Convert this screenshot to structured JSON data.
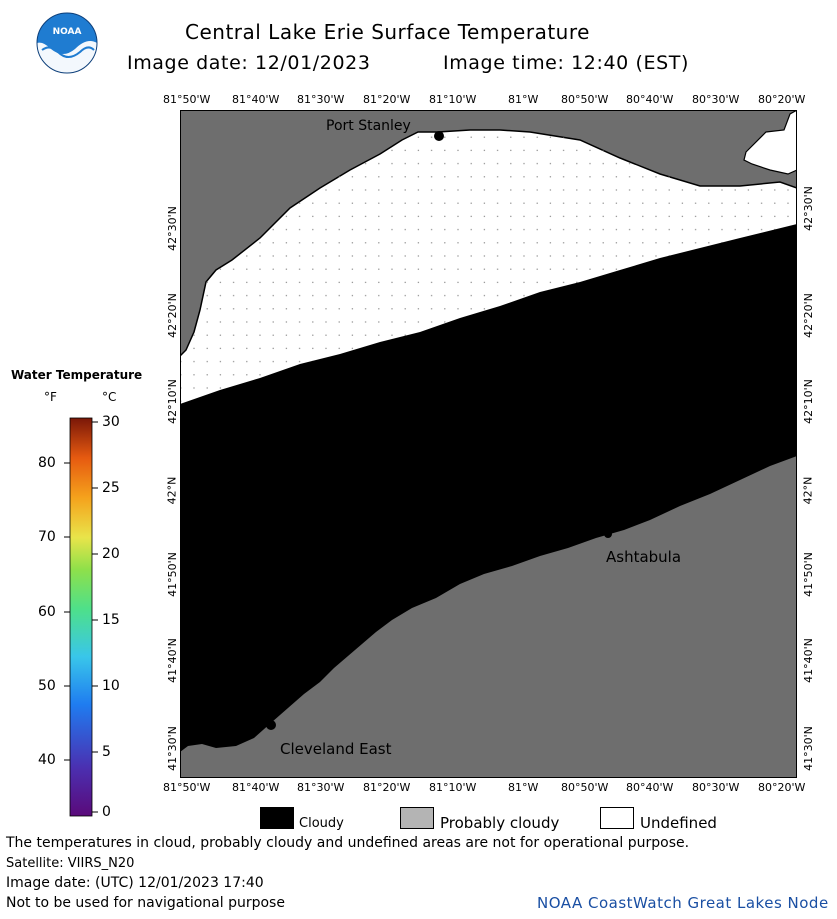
{
  "header": {
    "logo_text": "NOAA",
    "title": "Central Lake Erie Surface Temperature",
    "image_date": "Image date: 12/01/2023",
    "image_time": "Image time: 12:40 (EST)"
  },
  "map": {
    "lon_labels": [
      "81°50'W",
      "81°40'W",
      "81°30'W",
      "81°20'W",
      "81°10'W",
      "81°W",
      "80°50'W",
      "80°40'W",
      "80°30'W",
      "80°20'W"
    ],
    "lat_labels": [
      "42°30'N",
      "42°20'N",
      "42°10'N",
      "42°N",
      "41°50'N",
      "41°40'N",
      "41°30'N"
    ],
    "places": {
      "port_stanley": "Port Stanley",
      "ashtabula": "Ashtabula",
      "cleveland_east": "Cleveland East"
    },
    "colors": {
      "land": "#6e6e6e",
      "cloudy": "#000000",
      "undefined": "#ffffff",
      "grid": "#9a9a9a"
    }
  },
  "temperature_scale": {
    "title": "Water Temperature",
    "unit_f": "°F",
    "unit_c": "°C",
    "f_labels": [
      "80",
      "70",
      "60",
      "50",
      "40"
    ],
    "c_labels": [
      "30",
      "25",
      "20",
      "15",
      "10",
      "5",
      "0"
    ]
  },
  "legend": {
    "cloudy": "Cloudy",
    "probably_cloudy": "Probably cloudy",
    "undefined": "Undefined",
    "colors": {
      "cloudy": "#000000",
      "probably_cloudy": "#b4b4b4",
      "undefined": "#ffffff"
    }
  },
  "footer": {
    "note": "The temperatures in cloud, probably cloudy and undefined areas are not for operational purpose.",
    "satellite": "Satellite: VIIRS_N20",
    "utc_date": "Image date: (UTC) 12/01/2023  17:40",
    "nav_warning": "Not to be used for navigational purpose",
    "credit": "NOAA CoastWatch Great Lakes Node"
  }
}
